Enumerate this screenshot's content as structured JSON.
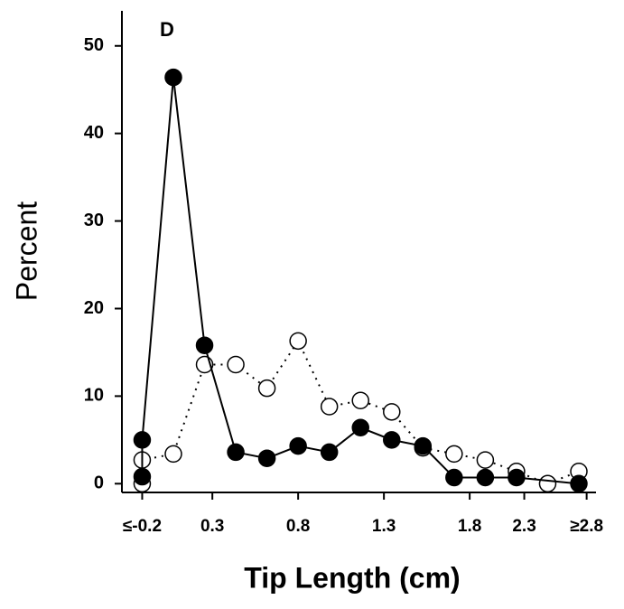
{
  "chart_data": {
    "type": "line",
    "title": "D",
    "xlabel": "Tip Length (cm)",
    "ylabel": "Percent",
    "xlim": [
      -0.33,
      2.71
    ],
    "ylim": [
      -1,
      54
    ],
    "xticks": [
      {
        "value": -0.2,
        "label": "≤-0.2"
      },
      {
        "value": 0.25,
        "label": "0.3"
      },
      {
        "value": 0.8,
        "label": "0.8"
      },
      {
        "value": 1.35,
        "label": "1.3"
      },
      {
        "value": 1.9,
        "label": "1.8"
      },
      {
        "value": 2.25,
        "label": "2.3"
      },
      {
        "value": 2.65,
        "label": "≥2.8"
      }
    ],
    "yticks": [
      0,
      10,
      20,
      30,
      40,
      50
    ],
    "series": [
      {
        "color": "#000000",
        "marker": "filled",
        "line": "solid",
        "x": [
          -0.2,
          -0.2,
          0,
          0.2,
          0.4,
          0.6,
          0.8,
          1.0,
          1.2,
          1.4,
          1.6,
          1.8,
          2.0,
          2.2,
          2.6
        ],
        "values": [
          0.8,
          5.0,
          46.4,
          15.8,
          3.6,
          2.9,
          4.3,
          3.6,
          6.4,
          5.0,
          4.3,
          0.7,
          0.7,
          0.7,
          0
        ]
      },
      {
        "color": "#000000",
        "marker": "open",
        "line": "dotted",
        "x": [
          -0.2,
          -0.2,
          0,
          0.2,
          0.4,
          0.6,
          0.8,
          1.0,
          1.2,
          1.4,
          1.6,
          1.8,
          2.0,
          2.2,
          2.4,
          2.6
        ],
        "values": [
          0,
          2.7,
          3.4,
          13.6,
          13.6,
          10.9,
          16.3,
          8.8,
          9.5,
          8.2,
          4.1,
          3.4,
          2.7,
          1.4,
          0,
          1.4
        ]
      }
    ]
  }
}
